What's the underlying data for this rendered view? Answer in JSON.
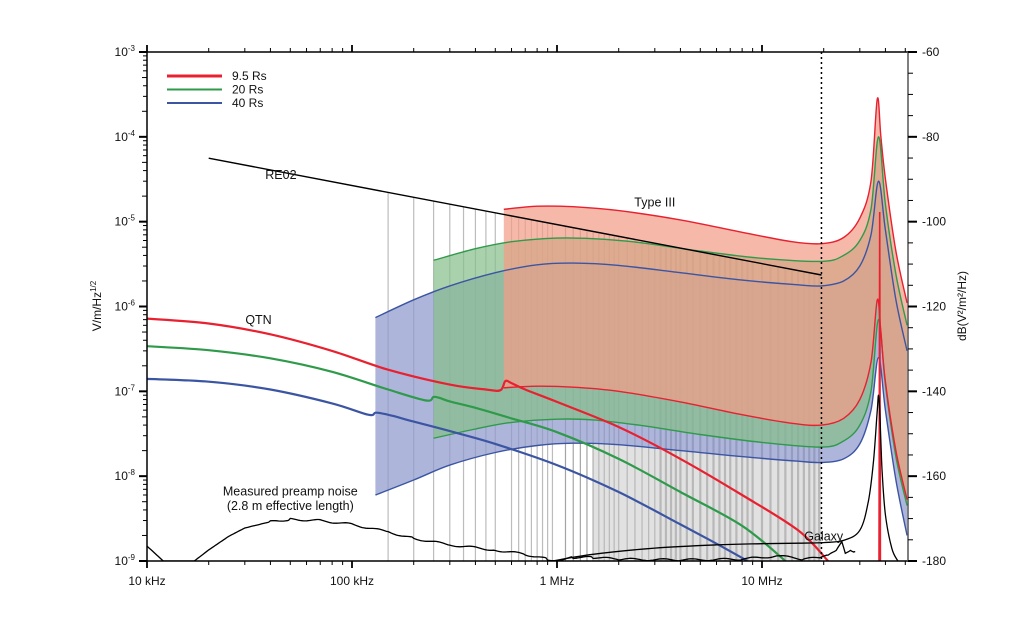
{
  "chart_data": {
    "type": "line",
    "title": "",
    "xlabel": "",
    "ylabel": "V/m/Hz^1/2",
    "ylabel_right": "dB(V²/m²/Hz)",
    "xscale": "log",
    "yscale": "log",
    "xlim_hz": [
      10000,
      51000000
    ],
    "ylim": [
      1e-09,
      0.001
    ],
    "ylim_right_db": [
      -180,
      -60
    ],
    "grid": false,
    "legend_position": "top-left",
    "x_ticks": [
      {
        "value": 10000,
        "label": "10 kHz"
      },
      {
        "value": 100000,
        "label": "100 kHz"
      },
      {
        "value": 1000000,
        "label": "1 MHz"
      },
      {
        "value": 10000000,
        "label": "10 MHz"
      }
    ],
    "y_ticks": [
      {
        "value": 0.001,
        "base": "10",
        "exp": "-3"
      },
      {
        "value": 0.0001,
        "base": "10",
        "exp": "-4"
      },
      {
        "value": 1e-05,
        "base": "10",
        "exp": "-5"
      },
      {
        "value": 1e-06,
        "base": "10",
        "exp": "-6"
      },
      {
        "value": 1e-07,
        "base": "10",
        "exp": "-7"
      },
      {
        "value": 1e-08,
        "base": "10",
        "exp": "-8"
      },
      {
        "value": 1e-09,
        "base": "10",
        "exp": "-9"
      }
    ],
    "y_ticks_right": [
      "-60",
      "-80",
      "-100",
      "-120",
      "-140",
      "-160",
      "-180"
    ],
    "legend": [
      {
        "name": "9.5 Rs",
        "color": "#e8202f"
      },
      {
        "name": "20 Rs",
        "color": "#2e9a4a"
      },
      {
        "name": "40 Rs",
        "color": "#3b55a3"
      }
    ],
    "annotations": [
      {
        "text": "RE02",
        "x_hz": 45000,
        "y": 3.2e-05
      },
      {
        "text": "QTN",
        "x_hz": 35000,
        "y": 6.2e-07
      },
      {
        "text": "Type III",
        "x_hz": 3000000,
        "y": 1.5e-05
      },
      {
        "text": "Measured preamp noise",
        "x_hz": 50000,
        "y": 5.9e-09
      },
      {
        "text": "(2.8 m effective length)",
        "x_hz": 50000,
        "y": 4e-09
      },
      {
        "text": "Galaxy",
        "x_hz": 20000000,
        "y": 1.75e-09
      }
    ],
    "dotted_line_hz": 19500000,
    "re02_line": {
      "x_hz": [
        20000,
        19500000
      ],
      "y": [
        5.6e-05,
        2.35e-06
      ]
    },
    "type3_bands": [
      {
        "name": "40 Rs",
        "color": "#3b55a3",
        "fill": "#8f99cc",
        "x_hz": [
          130000,
          200000,
          300000,
          500000,
          800000,
          1200000,
          2000000,
          4000000,
          8000000,
          15000000,
          19500000,
          25000000,
          30000000,
          34000000,
          37000000,
          40000000,
          45000000,
          51000000
        ],
        "upper": [
          7.4e-07,
          1.2e-06,
          1.75e-06,
          2.5e-06,
          3.1e-06,
          3.25e-06,
          3.05e-06,
          2.5e-06,
          2.05e-06,
          1.8e-06,
          1.75e-06,
          2e-06,
          3e-06,
          7e-06,
          3e-05,
          8e-06,
          1.2e-06,
          3e-07
        ],
        "lower": [
          6e-09,
          9e-09,
          1.35e-08,
          1.9e-08,
          2.3e-08,
          2.45e-08,
          2.35e-08,
          2e-08,
          1.7e-08,
          1.5e-08,
          1.45e-08,
          1.6e-08,
          2.4e-08,
          6e-08,
          2.5e-07,
          6e-08,
          9e-09,
          2e-09
        ]
      },
      {
        "name": "20 Rs",
        "color": "#2e9a4a",
        "fill": "#88bf8c",
        "x_hz": [
          250000,
          400000,
          600000,
          1000000,
          1500000,
          2500000,
          5000000,
          10000000,
          19500000,
          25000000,
          30000000,
          34000000,
          37000000,
          40000000,
          45000000,
          51000000
        ],
        "upper": [
          3.5e-06,
          4.8e-06,
          5.8e-06,
          6.4e-06,
          6.3e-06,
          5.7e-06,
          4.5e-06,
          3.7e-06,
          3.4e-06,
          4e-06,
          6e-06,
          1.4e-05,
          0.0001,
          1.6e-05,
          2.4e-06,
          6e-07
        ],
        "lower": [
          2.8e-08,
          3.6e-08,
          4.3e-08,
          4.7e-08,
          4.6e-08,
          4e-08,
          3.1e-08,
          2.5e-08,
          2.2e-08,
          2.6e-08,
          4e-08,
          1e-07,
          7e-07,
          1.2e-07,
          1.7e-08,
          4.5e-09
        ]
      },
      {
        "name": "9.5 Rs",
        "color": "#e8202f",
        "fill": "#f29c87",
        "x_hz": [
          550000,
          800000,
          1200000,
          2000000,
          4000000,
          8000000,
          14000000,
          19500000,
          25000000,
          30000000,
          34000000,
          36500000,
          38000000,
          40000000,
          45000000,
          51000000
        ],
        "upper": [
          1.4e-05,
          1.52e-05,
          1.5e-05,
          1.35e-05,
          1.05e-05,
          7.5e-06,
          5.8e-06,
          5.5e-06,
          6.5e-06,
          1.1e-05,
          3e-05,
          0.00028,
          0.0001,
          3.2e-05,
          4.5e-06,
          1.1e-06
        ],
        "lower": [
          1.1e-07,
          1.15e-07,
          1.12e-07,
          1e-07,
          7.5e-08,
          5.3e-08,
          4.2e-08,
          4e-08,
          4.8e-08,
          8e-08,
          2.2e-07,
          1.2e-06,
          5e-07,
          1.3e-07,
          2e-08,
          5.3e-09
        ]
      }
    ],
    "qtn_series": [
      {
        "name": "9.5 Rs",
        "color": "#e8202f",
        "x_hz": [
          10000,
          20000,
          40000,
          80000,
          150000,
          300000,
          450000,
          530000,
          560000,
          600000,
          700000,
          1000000,
          2000000,
          4000000,
          8000000,
          15000000,
          21000000
        ],
        "y": [
          7.2e-07,
          6.3e-07,
          4.7e-07,
          3e-07,
          1.8e-07,
          1.2e-07,
          1.05e-07,
          1.03e-07,
          1.32e-07,
          1.25e-07,
          1.05e-07,
          7.5e-08,
          3.8e-08,
          1.6e-08,
          6e-09,
          2.3e-09,
          1e-09
        ]
      },
      {
        "name": "20 Rs",
        "color": "#2e9a4a",
        "x_hz": [
          10000,
          20000,
          40000,
          80000,
          150000,
          230000,
          250000,
          270000,
          300000,
          400000,
          600000,
          1000000,
          2000000,
          4000000,
          8000000,
          13000000
        ],
        "y": [
          3.4e-07,
          3.05e-07,
          2.45e-07,
          1.7e-07,
          1.05e-07,
          7.8e-08,
          8.6e-08,
          8.3e-08,
          7.6e-08,
          6.4e-08,
          4.8e-08,
          3.3e-08,
          1.6e-08,
          6.5e-09,
          2.6e-09,
          1e-09
        ]
      },
      {
        "name": "40 Rs",
        "color": "#3b55a3",
        "x_hz": [
          10000,
          20000,
          40000,
          80000,
          120000,
          130000,
          140000,
          160000,
          200000,
          300000,
          500000,
          1000000,
          2000000,
          4000000,
          6000000,
          8500000
        ],
        "y": [
          1.4e-07,
          1.3e-07,
          1.05e-07,
          7.2e-08,
          5.3e-08,
          5.6e-08,
          5.5e-08,
          5.1e-08,
          4.4e-08,
          3.4e-08,
          2.4e-08,
          1.35e-08,
          6.5e-09,
          2.7e-09,
          1.6e-09,
          1e-09
        ]
      }
    ],
    "plasma_line_red": {
      "x_hz": [
        37200000,
        37500000,
        37800000
      ],
      "y": [
        1e-09,
        1.3e-05,
        1e-09
      ]
    },
    "galaxy": {
      "name": "Galaxy",
      "color": "#000000",
      "x_hz": [
        950000,
        1500000,
        3000000,
        6000000,
        10000000,
        15000000,
        20000000,
        25000000,
        30000000,
        33000000,
        35000000,
        36500000,
        37000000,
        37500000,
        38500000,
        40000000,
        43000000,
        46000000
      ],
      "y": [
        1e-09,
        1.2e-09,
        1.42e-09,
        1.55e-09,
        1.6e-09,
        1.62e-09,
        1.65e-09,
        1.75e-09,
        2.3e-09,
        5e-09,
        1.5e-08,
        6e-08,
        9e-08,
        6e-08,
        1.2e-08,
        3.5e-09,
        1.4e-09,
        1e-09
      ]
    },
    "preamp_noise": {
      "name": "Measured preamp noise",
      "color": "#000000",
      "x_hz": [
        10000,
        12000,
        17000,
        20000,
        25000,
        30000,
        40000,
        50000,
        70000,
        100000,
        150000,
        200000,
        300000,
        500000,
        700000,
        900000,
        1000000,
        1200000,
        1500000,
        2000000,
        4000000,
        8000000,
        12000000,
        16000000,
        19500000,
        21000000,
        23000000,
        24500000,
        25500000,
        27000000,
        28000000,
        29000000
      ],
      "y": [
        1.5e-09,
        1e-09,
        1e-09,
        1.35e-09,
        1.95e-09,
        2.45e-09,
        2.9e-09,
        3.1e-09,
        3e-09,
        2.7e-09,
        2.2e-09,
        1.85e-09,
        1.55e-09,
        1.35e-09,
        1.2e-09,
        1.05e-09,
        1.02e-09,
        1.1e-09,
        1.1e-09,
        1.05e-09,
        1.03e-09,
        1.05e-09,
        1.15e-09,
        1.05e-09,
        1.1e-09,
        1.15e-09,
        1.3e-09,
        1.65e-09,
        1.2e-09,
        1.3e-09,
        1.25e-09,
        1.3e-09
      ]
    },
    "gray_bars": {
      "color": "#b5b5b5",
      "x_hz": [
        150000,
        200000,
        250000,
        300000,
        350000,
        400000,
        450000,
        500000,
        600000,
        650000,
        700000,
        750000,
        800000,
        850000,
        900000,
        950000,
        1100000,
        1200000,
        1300000,
        1400000,
        1500000,
        1600000,
        1700000,
        1800000,
        1900000,
        2000000,
        2200000,
        2400000,
        2600000,
        2800000,
        3000000,
        3200000,
        3400000,
        3600000,
        3800000,
        4000000,
        4300000,
        4600000,
        5000000,
        5400000,
        5800000,
        6200000,
        6600000,
        7000000,
        7500000,
        8000000,
        8500000,
        9000000,
        10000000,
        11000000,
        12000000,
        13000000,
        14000000,
        15000000,
        16000000,
        17000000,
        18000000,
        19000000
      ]
    }
  }
}
